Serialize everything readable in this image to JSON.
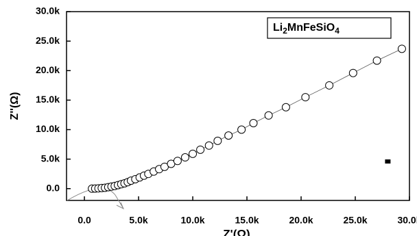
{
  "chart_data": {
    "type": "scatter",
    "x_label": "Z'(Ω)",
    "y_label": "Z''(Ω)",
    "annotation_parts": [
      "Li",
      "2",
      "MnFeSiO",
      "4"
    ],
    "xlim": [
      -1650,
      30000
    ],
    "ylim": [
      -2000,
      30000
    ],
    "xticks": [
      {
        "value": 0,
        "label": "0.0"
      },
      {
        "value": 5000,
        "label": "5.0k"
      },
      {
        "value": 10000,
        "label": "10.0k"
      },
      {
        "value": 15000,
        "label": "15.0k"
      },
      {
        "value": 20000,
        "label": "20.0k"
      },
      {
        "value": 25000,
        "label": "25.0k"
      },
      {
        "value": 30000,
        "label": "30.0k"
      }
    ],
    "yticks": [
      {
        "value": 0,
        "label": "0.0"
      },
      {
        "value": 5000,
        "label": "5.0k"
      },
      {
        "value": 10000,
        "label": "10.0k"
      },
      {
        "value": 15000,
        "label": "15.0k"
      },
      {
        "value": 20000,
        "label": "20.0k"
      },
      {
        "value": 25000,
        "label": "25.0k"
      },
      {
        "value": 30000,
        "label": "30.0k"
      }
    ],
    "series": [
      {
        "marker": "circle",
        "color": "#000000",
        "x": [
          700,
          1000,
          1300,
          1600,
          1900,
          2200,
          2500,
          2800,
          3100,
          3400,
          3700,
          4000,
          4300,
          4700,
          5100,
          5500,
          5900,
          6400,
          6900,
          7400,
          8000,
          8600,
          9300,
          10000,
          10700,
          11500,
          12300,
          13300,
          14500,
          15600,
          17000,
          18600,
          20400,
          22600,
          24800,
          27000,
          29300
        ],
        "values": [
          0,
          20,
          50,
          100,
          150,
          250,
          350,
          450,
          600,
          750,
          900,
          1100,
          1350,
          1600,
          1900,
          2200,
          2500,
          2900,
          3300,
          3700,
          4200,
          4700,
          5300,
          5900,
          6600,
          7300,
          8100,
          9000,
          10000,
          11100,
          12400,
          13800,
          15500,
          17500,
          19600,
          21700,
          23700
        ]
      },
      {
        "marker": "square",
        "color": "#000000",
        "x": [
          28000
        ],
        "values": [
          4600
        ]
      }
    ]
  }
}
